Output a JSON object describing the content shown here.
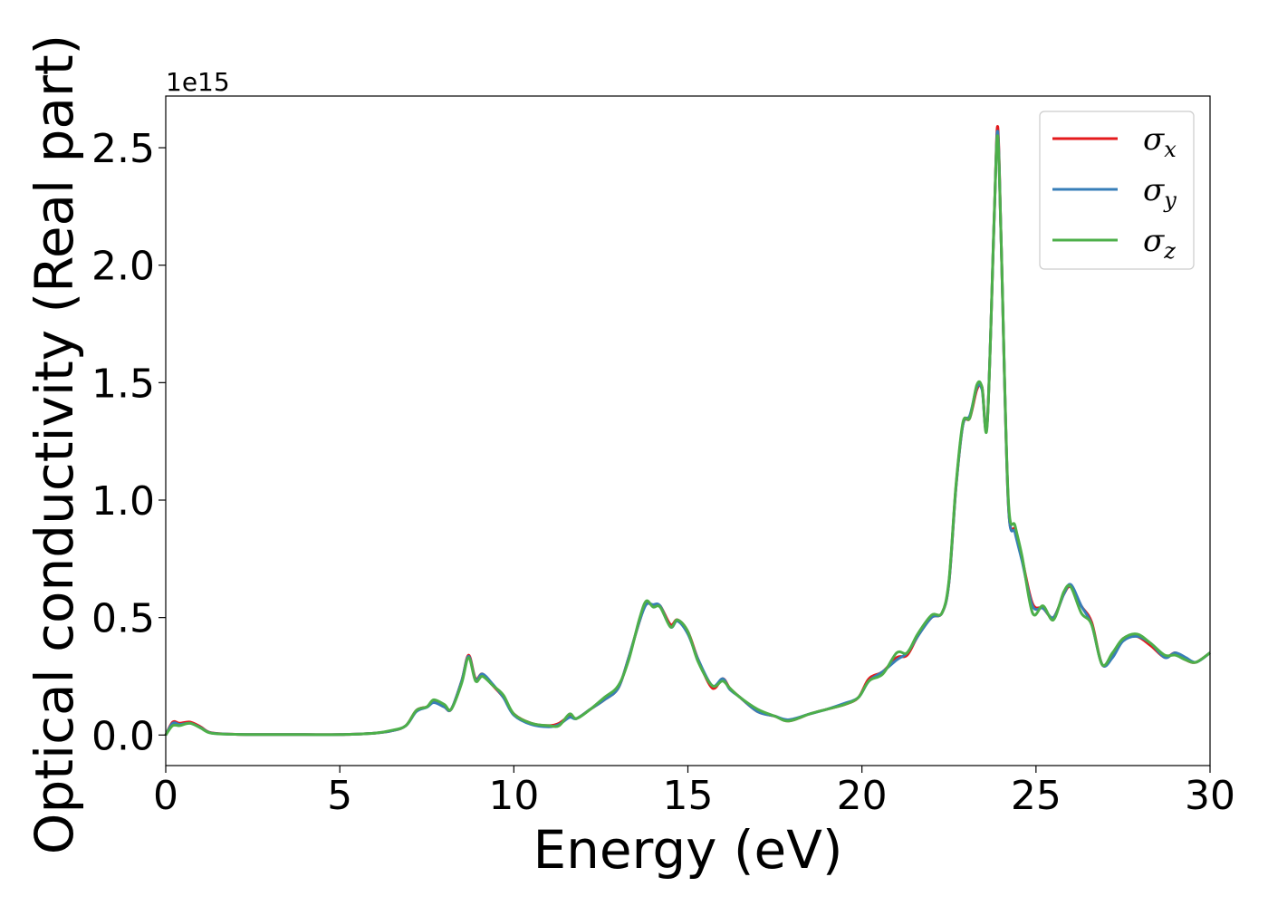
{
  "chart_data": {
    "type": "line",
    "xlabel": "Energy (eV)",
    "ylabel": "Optical conductivity (Real part)",
    "y_offset_label": "1e15",
    "xlim": [
      0,
      30
    ],
    "ylim": [
      -0.13,
      2.72
    ],
    "x_ticks": [
      0,
      5,
      10,
      15,
      20,
      25,
      30
    ],
    "x_tick_labels": [
      "0",
      "5",
      "10",
      "15",
      "20",
      "25",
      "30"
    ],
    "y_ticks": [
      0.0,
      0.5,
      1.0,
      1.5,
      2.0,
      2.5
    ],
    "y_tick_labels": [
      "0.0",
      "0.5",
      "1.0",
      "1.5",
      "2.0",
      "2.5"
    ],
    "grid": false,
    "legend_position": "top-right",
    "x": [
      0,
      0.2,
      0.4,
      0.7,
      1.0,
      1.3,
      2.0,
      3.0,
      4.0,
      5.0,
      6.0,
      6.5,
      6.9,
      7.2,
      7.5,
      7.7,
      8.0,
      8.2,
      8.5,
      8.7,
      8.9,
      9.1,
      9.4,
      9.7,
      10.0,
      10.5,
      11.0,
      11.3,
      11.6,
      11.8,
      12.2,
      12.6,
      13.0,
      13.3,
      13.6,
      13.8,
      14.0,
      14.2,
      14.5,
      14.7,
      15.0,
      15.3,
      15.7,
      16.0,
      16.2,
      16.5,
      17.0,
      17.5,
      17.9,
      18.5,
      19.0,
      19.5,
      19.9,
      20.2,
      20.6,
      21.0,
      21.3,
      21.6,
      22.0,
      22.3,
      22.5,
      22.7,
      22.9,
      23.1,
      23.3,
      23.45,
      23.6,
      23.8,
      23.9,
      24.0,
      24.2,
      24.4,
      24.6,
      24.9,
      25.2,
      25.5,
      25.8,
      26.0,
      26.3,
      26.6,
      26.9,
      27.2,
      27.5,
      27.9,
      28.3,
      28.7,
      29.0,
      29.3,
      29.6,
      30.0
    ],
    "series": [
      {
        "name": "σx",
        "color": "#e41a1c",
        "values": [
          0.0,
          0.055,
          0.05,
          0.055,
          0.035,
          0.01,
          0.003,
          0.002,
          0.002,
          0.002,
          0.008,
          0.018,
          0.04,
          0.105,
          0.12,
          0.14,
          0.12,
          0.11,
          0.23,
          0.34,
          0.24,
          0.26,
          0.21,
          0.16,
          0.09,
          0.05,
          0.04,
          0.05,
          0.08,
          0.07,
          0.11,
          0.15,
          0.2,
          0.33,
          0.48,
          0.56,
          0.55,
          0.55,
          0.47,
          0.49,
          0.44,
          0.32,
          0.2,
          0.24,
          0.2,
          0.16,
          0.1,
          0.08,
          0.06,
          0.09,
          0.11,
          0.13,
          0.16,
          0.24,
          0.27,
          0.33,
          0.34,
          0.42,
          0.5,
          0.52,
          0.65,
          1.05,
          1.32,
          1.35,
          1.47,
          1.48,
          1.33,
          2.2,
          2.59,
          2.1,
          1.0,
          0.87,
          0.75,
          0.56,
          0.54,
          0.5,
          0.6,
          0.63,
          0.55,
          0.48,
          0.3,
          0.34,
          0.41,
          0.42,
          0.38,
          0.33,
          0.35,
          0.32,
          0.31,
          0.35
        ]
      },
      {
        "name": "σy",
        "color": "#377eb8",
        "values": [
          0.0,
          0.05,
          0.045,
          0.05,
          0.032,
          0.009,
          0.003,
          0.002,
          0.002,
          0.002,
          0.008,
          0.018,
          0.04,
          0.1,
          0.118,
          0.138,
          0.12,
          0.11,
          0.23,
          0.335,
          0.235,
          0.26,
          0.215,
          0.16,
          0.085,
          0.045,
          0.035,
          0.045,
          0.075,
          0.07,
          0.11,
          0.15,
          0.2,
          0.33,
          0.48,
          0.555,
          0.555,
          0.55,
          0.46,
          0.485,
          0.43,
          0.32,
          0.21,
          0.24,
          0.195,
          0.16,
          0.1,
          0.08,
          0.065,
          0.09,
          0.11,
          0.135,
          0.16,
          0.23,
          0.27,
          0.32,
          0.35,
          0.42,
          0.5,
          0.52,
          0.65,
          1.05,
          1.32,
          1.36,
          1.48,
          1.47,
          1.33,
          2.2,
          2.57,
          2.1,
          1.0,
          0.86,
          0.74,
          0.55,
          0.54,
          0.5,
          0.6,
          0.64,
          0.55,
          0.47,
          0.3,
          0.33,
          0.4,
          0.42,
          0.39,
          0.33,
          0.35,
          0.33,
          0.31,
          0.35
        ]
      },
      {
        "name": "σz",
        "color": "#4daf4a",
        "values": [
          0.0,
          0.04,
          0.04,
          0.05,
          0.03,
          0.008,
          0.003,
          0.002,
          0.002,
          0.002,
          0.008,
          0.02,
          0.04,
          0.105,
          0.12,
          0.15,
          0.13,
          0.11,
          0.22,
          0.33,
          0.23,
          0.25,
          0.21,
          0.17,
          0.09,
          0.05,
          0.04,
          0.04,
          0.09,
          0.07,
          0.11,
          0.16,
          0.21,
          0.32,
          0.49,
          0.57,
          0.545,
          0.545,
          0.46,
          0.49,
          0.44,
          0.31,
          0.21,
          0.23,
          0.2,
          0.16,
          0.11,
          0.08,
          0.06,
          0.09,
          0.11,
          0.13,
          0.16,
          0.23,
          0.26,
          0.35,
          0.35,
          0.43,
          0.51,
          0.52,
          0.66,
          1.06,
          1.33,
          1.35,
          1.49,
          1.48,
          1.32,
          2.21,
          2.55,
          2.1,
          1.02,
          0.89,
          0.76,
          0.52,
          0.55,
          0.49,
          0.61,
          0.63,
          0.52,
          0.47,
          0.3,
          0.35,
          0.41,
          0.43,
          0.39,
          0.34,
          0.34,
          0.32,
          0.31,
          0.35
        ]
      }
    ]
  }
}
